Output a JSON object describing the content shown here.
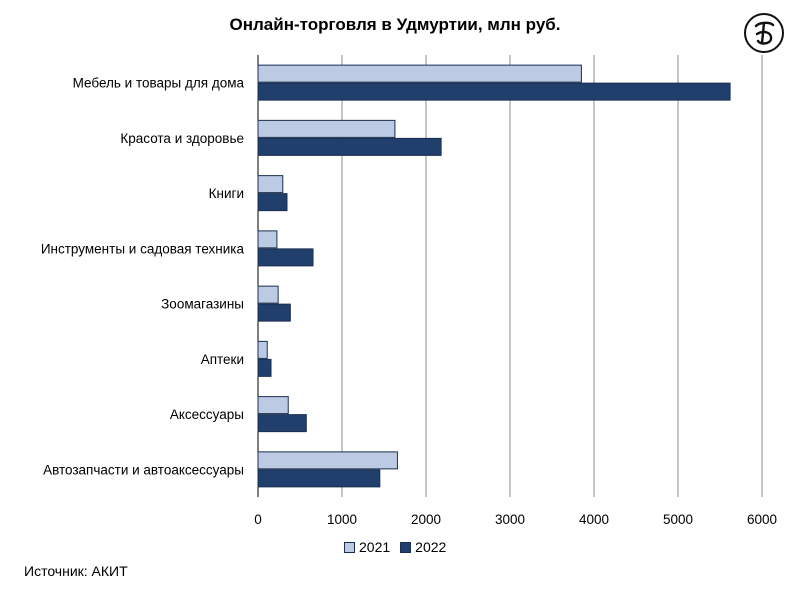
{
  "chart_data": {
    "type": "bar",
    "orientation": "horizontal",
    "title": "Онлайн-торговля в Удмуртии, млн руб.",
    "categories": [
      "Мебель и товары для дома",
      "Красота и здоровье",
      "Книги",
      "Инструменты и садовая техника",
      "Зоомагазины",
      "Аптеки",
      "Аксессуары",
      "Автозапчасти и автоаксессуары"
    ],
    "series": [
      {
        "name": "2021",
        "color": "#bccbe3",
        "values": [
          3850,
          1630,
          295,
          225,
          240,
          110,
          360,
          1660
        ]
      },
      {
        "name": "2022",
        "color": "#203f6c",
        "values": [
          5620,
          2180,
          345,
          655,
          385,
          155,
          575,
          1450
        ]
      }
    ],
    "xlim": [
      0,
      6000
    ],
    "xticks": [
      "0",
      "1000",
      "2000",
      "3000",
      "4000",
      "5000",
      "6000"
    ],
    "xlabel": "",
    "ylabel": "",
    "grid": true,
    "legend_position": "bottom"
  },
  "source_text": "Источник: АКИТ",
  "logo_icon": "publisher-logo-icon"
}
